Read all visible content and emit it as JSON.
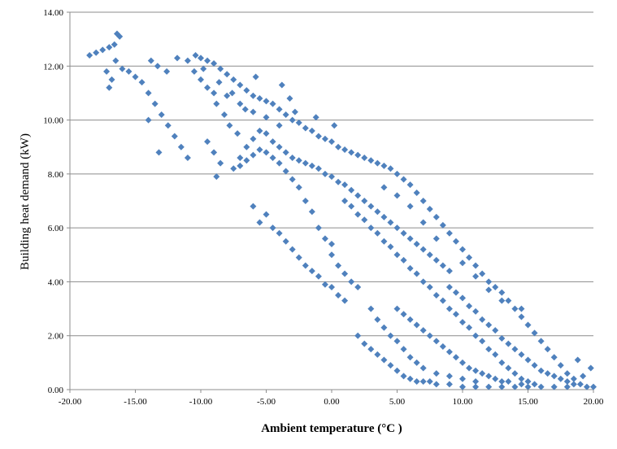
{
  "chart_data": {
    "type": "scatter",
    "title": "",
    "xlabel": "Ambient temperature (°C )",
    "ylabel": "Building heat demand (kW)",
    "xlim": [
      -20,
      20
    ],
    "ylim": [
      0,
      14
    ],
    "x_ticks": [
      -20,
      -15,
      -10,
      -5,
      0,
      5,
      10,
      15,
      20
    ],
    "y_ticks": [
      0,
      2,
      4,
      6,
      8,
      10,
      12,
      14
    ],
    "x_tick_labels": [
      "-20.00",
      "-15.00",
      "-10.00",
      "-5.00",
      "0.00",
      "5.00",
      "10.00",
      "15.00",
      "20.00"
    ],
    "y_tick_labels": [
      "0.00",
      "2.00",
      "4.00",
      "6.00",
      "8.00",
      "10.00",
      "12.00",
      "14.00"
    ],
    "grid": {
      "horizontal": true,
      "vertical": false
    },
    "legend": "none",
    "marker": "diamond",
    "marker_color": "#4F81BD",
    "series": [
      {
        "points": [
          [
            -18.5,
            12.4
          ],
          [
            -18.0,
            12.5
          ],
          [
            -17.5,
            12.6
          ],
          [
            -17.0,
            12.7
          ],
          [
            -16.6,
            12.8
          ],
          [
            -16.4,
            13.2
          ],
          [
            -16.2,
            13.1
          ],
          [
            -17.2,
            11.8
          ],
          [
            -17.0,
            11.2
          ],
          [
            -16.8,
            11.5
          ],
          [
            -16.5,
            12.2
          ],
          [
            -16.0,
            11.9
          ],
          [
            -15.5,
            11.8
          ],
          [
            -15.0,
            11.6
          ],
          [
            -14.5,
            11.4
          ],
          [
            -14.0,
            11.0
          ],
          [
            -13.5,
            10.6
          ],
          [
            -13.0,
            10.2
          ],
          [
            -12.5,
            9.8
          ],
          [
            -12.0,
            9.4
          ],
          [
            -11.5,
            9.0
          ],
          [
            -11.0,
            8.6
          ],
          [
            -13.2,
            8.8
          ],
          [
            -14.0,
            10.0
          ],
          [
            -13.8,
            12.2
          ],
          [
            -13.3,
            12.0
          ],
          [
            -12.6,
            11.8
          ],
          [
            -11.8,
            12.3
          ],
          [
            -11.0,
            12.2
          ],
          [
            -10.4,
            12.4
          ],
          [
            -10.0,
            12.3
          ],
          [
            -9.5,
            12.2
          ],
          [
            -9.0,
            12.1
          ],
          [
            -8.5,
            11.9
          ],
          [
            -8.0,
            11.7
          ],
          [
            -7.5,
            11.5
          ],
          [
            -7.0,
            11.3
          ],
          [
            -6.5,
            11.1
          ],
          [
            -6.0,
            10.9
          ],
          [
            -5.5,
            10.8
          ],
          [
            -5.0,
            10.7
          ],
          [
            -4.5,
            10.6
          ],
          [
            -4.0,
            10.4
          ],
          [
            -3.5,
            10.2
          ],
          [
            -10.5,
            11.8
          ],
          [
            -10.0,
            11.5
          ],
          [
            -9.5,
            11.2
          ],
          [
            -9.0,
            11.0
          ],
          [
            -8.8,
            10.6
          ],
          [
            -8.2,
            10.2
          ],
          [
            -7.8,
            9.8
          ],
          [
            -7.2,
            9.5
          ],
          [
            -9.5,
            9.2
          ],
          [
            -9.0,
            8.8
          ],
          [
            -8.5,
            8.4
          ],
          [
            -8.8,
            7.9
          ],
          [
            -7.5,
            8.2
          ],
          [
            -7.0,
            8.6
          ],
          [
            -6.5,
            9.0
          ],
          [
            -6.0,
            9.3
          ],
          [
            -5.5,
            9.6
          ],
          [
            -5.0,
            9.5
          ],
          [
            -4.5,
            9.2
          ],
          [
            -4.0,
            9.0
          ],
          [
            -3.5,
            8.8
          ],
          [
            -3.0,
            8.6
          ],
          [
            -2.5,
            8.5
          ],
          [
            -2.0,
            8.4
          ],
          [
            -1.5,
            8.3
          ],
          [
            -1.0,
            8.2
          ],
          [
            -0.5,
            8.0
          ],
          [
            0.0,
            7.9
          ],
          [
            0.5,
            7.7
          ],
          [
            1.0,
            7.6
          ],
          [
            1.5,
            7.4
          ],
          [
            2.0,
            7.2
          ],
          [
            2.5,
            7.0
          ],
          [
            3.0,
            6.8
          ],
          [
            3.5,
            6.6
          ],
          [
            4.0,
            6.4
          ],
          [
            4.5,
            6.2
          ],
          [
            5.0,
            6.0
          ],
          [
            5.5,
            5.8
          ],
          [
            6.0,
            5.6
          ],
          [
            6.5,
            5.4
          ],
          [
            7.0,
            5.2
          ],
          [
            7.5,
            5.0
          ],
          [
            8.0,
            4.8
          ],
          [
            8.5,
            4.6
          ],
          [
            9.0,
            4.4
          ],
          [
            -6.0,
            6.8
          ],
          [
            -5.5,
            6.2
          ],
          [
            -5.0,
            6.5
          ],
          [
            -4.5,
            6.0
          ],
          [
            -4.0,
            5.8
          ],
          [
            -3.5,
            5.5
          ],
          [
            -3.0,
            5.2
          ],
          [
            -2.5,
            4.9
          ],
          [
            -2.0,
            4.6
          ],
          [
            -1.5,
            4.4
          ],
          [
            -1.0,
            4.2
          ],
          [
            -0.5,
            3.9
          ],
          [
            0.0,
            3.8
          ],
          [
            0.5,
            3.5
          ],
          [
            1.0,
            3.3
          ],
          [
            -3.0,
            10.0
          ],
          [
            -2.5,
            9.9
          ],
          [
            -2.0,
            9.7
          ],
          [
            -1.5,
            9.6
          ],
          [
            -1.0,
            9.4
          ],
          [
            -0.5,
            9.3
          ],
          [
            0.0,
            9.2
          ],
          [
            0.5,
            9.0
          ],
          [
            1.0,
            8.9
          ],
          [
            1.5,
            8.8
          ],
          [
            2.0,
            8.7
          ],
          [
            2.5,
            8.6
          ],
          [
            3.0,
            8.5
          ],
          [
            3.5,
            8.4
          ],
          [
            4.0,
            8.3
          ],
          [
            4.5,
            8.2
          ],
          [
            5.0,
            8.0
          ],
          [
            5.5,
            7.8
          ],
          [
            6.0,
            7.6
          ],
          [
            6.5,
            7.3
          ],
          [
            7.0,
            7.0
          ],
          [
            7.5,
            6.7
          ],
          [
            8.0,
            6.4
          ],
          [
            8.5,
            6.1
          ],
          [
            9.0,
            5.8
          ],
          [
            9.5,
            5.5
          ],
          [
            10.0,
            5.2
          ],
          [
            10.5,
            4.9
          ],
          [
            11.0,
            4.6
          ],
          [
            11.5,
            4.3
          ],
          [
            12.0,
            4.0
          ],
          [
            12.5,
            3.8
          ],
          [
            13.0,
            3.6
          ],
          [
            13.5,
            3.3
          ],
          [
            14.0,
            3.0
          ],
          [
            14.5,
            2.7
          ],
          [
            15.0,
            2.4
          ],
          [
            15.5,
            2.1
          ],
          [
            16.0,
            1.8
          ],
          [
            16.5,
            1.5
          ],
          [
            17.0,
            1.2
          ],
          [
            17.5,
            0.9
          ],
          [
            18.0,
            0.6
          ],
          [
            18.5,
            0.4
          ],
          [
            19.0,
            0.2
          ],
          [
            19.5,
            0.1
          ],
          [
            20.0,
            0.1
          ],
          [
            19.8,
            0.8
          ],
          [
            19.2,
            0.5
          ],
          [
            18.8,
            1.1
          ],
          [
            1.0,
            7.0
          ],
          [
            1.5,
            6.8
          ],
          [
            2.0,
            6.5
          ],
          [
            2.5,
            6.3
          ],
          [
            3.0,
            6.0
          ],
          [
            3.5,
            5.8
          ],
          [
            4.0,
            5.5
          ],
          [
            4.5,
            5.3
          ],
          [
            5.0,
            5.0
          ],
          [
            5.5,
            4.8
          ],
          [
            6.0,
            4.5
          ],
          [
            6.5,
            4.3
          ],
          [
            7.0,
            4.0
          ],
          [
            7.5,
            3.8
          ],
          [
            8.0,
            3.5
          ],
          [
            8.5,
            3.3
          ],
          [
            9.0,
            3.0
          ],
          [
            9.5,
            2.8
          ],
          [
            10.0,
            2.5
          ],
          [
            10.5,
            2.3
          ],
          [
            11.0,
            2.0
          ],
          [
            11.5,
            1.8
          ],
          [
            12.0,
            1.5
          ],
          [
            12.5,
            1.3
          ],
          [
            13.0,
            1.0
          ],
          [
            13.5,
            0.8
          ],
          [
            14.0,
            0.6
          ],
          [
            14.5,
            0.4
          ],
          [
            15.0,
            0.3
          ],
          [
            15.5,
            0.2
          ],
          [
            2.0,
            2.0
          ],
          [
            2.5,
            1.7
          ],
          [
            3.0,
            1.5
          ],
          [
            3.5,
            1.3
          ],
          [
            4.0,
            1.1
          ],
          [
            4.5,
            0.9
          ],
          [
            5.0,
            0.7
          ],
          [
            5.5,
            0.5
          ],
          [
            6.0,
            0.4
          ],
          [
            6.5,
            0.3
          ],
          [
            7.0,
            0.3
          ],
          [
            7.5,
            0.3
          ],
          [
            8.0,
            0.2
          ],
          [
            9.0,
            0.2
          ],
          [
            10.0,
            0.1
          ],
          [
            11.0,
            0.1
          ],
          [
            12.0,
            0.1
          ],
          [
            13.0,
            0.1
          ],
          [
            14.0,
            0.1
          ],
          [
            16.0,
            0.1
          ],
          [
            17.0,
            0.1
          ],
          [
            18.0,
            0.1
          ],
          [
            3.0,
            3.0
          ],
          [
            3.5,
            2.6
          ],
          [
            4.0,
            2.3
          ],
          [
            4.5,
            2.0
          ],
          [
            5.0,
            1.8
          ],
          [
            5.5,
            1.5
          ],
          [
            6.0,
            1.2
          ],
          [
            6.5,
            1.0
          ],
          [
            7.0,
            0.8
          ],
          [
            8.0,
            0.6
          ],
          [
            9.0,
            0.5
          ],
          [
            10.0,
            0.4
          ],
          [
            11.0,
            0.3
          ],
          [
            0.0,
            5.0
          ],
          [
            0.5,
            4.6
          ],
          [
            1.0,
            4.3
          ],
          [
            1.5,
            4.0
          ],
          [
            2.0,
            3.8
          ],
          [
            -1.0,
            6.0
          ],
          [
            -0.5,
            5.6
          ],
          [
            0.0,
            5.4
          ],
          [
            -2.0,
            7.0
          ],
          [
            -1.5,
            6.6
          ],
          [
            -2.5,
            7.5
          ],
          [
            -3.0,
            7.8
          ],
          [
            -3.5,
            8.1
          ],
          [
            -4.0,
            8.4
          ],
          [
            -4.5,
            8.6
          ],
          [
            -5.0,
            8.8
          ],
          [
            -5.5,
            8.9
          ],
          [
            -6.0,
            8.7
          ],
          [
            -6.5,
            8.5
          ],
          [
            -7.0,
            8.3
          ],
          [
            5.0,
            3.0
          ],
          [
            5.5,
            2.8
          ],
          [
            6.0,
            2.6
          ],
          [
            6.5,
            2.4
          ],
          [
            7.0,
            2.2
          ],
          [
            7.5,
            2.0
          ],
          [
            8.0,
            1.8
          ],
          [
            8.5,
            1.6
          ],
          [
            9.0,
            1.4
          ],
          [
            9.5,
            1.2
          ],
          [
            10.0,
            1.0
          ],
          [
            10.5,
            0.8
          ],
          [
            11.0,
            0.7
          ],
          [
            11.5,
            0.6
          ],
          [
            12.0,
            0.5
          ],
          [
            12.5,
            0.4
          ],
          [
            13.0,
            0.3
          ],
          [
            13.5,
            0.3
          ],
          [
            14.5,
            0.2
          ],
          [
            15.0,
            0.1
          ],
          [
            9.0,
            3.8
          ],
          [
            9.5,
            3.6
          ],
          [
            10.0,
            3.4
          ],
          [
            10.5,
            3.1
          ],
          [
            11.0,
            2.9
          ],
          [
            11.5,
            2.6
          ],
          [
            12.0,
            2.4
          ],
          [
            12.5,
            2.2
          ],
          [
            13.0,
            1.9
          ],
          [
            13.5,
            1.7
          ],
          [
            14.0,
            1.5
          ],
          [
            14.5,
            1.3
          ],
          [
            15.0,
            1.1
          ],
          [
            15.5,
            0.9
          ],
          [
            16.0,
            0.7
          ],
          [
            16.5,
            0.6
          ],
          [
            17.0,
            0.5
          ],
          [
            17.5,
            0.4
          ],
          [
            18.0,
            0.3
          ],
          [
            18.5,
            0.2
          ],
          [
            14.5,
            3.0
          ],
          [
            13.0,
            3.3
          ],
          [
            12.0,
            3.7
          ],
          [
            11.0,
            4.2
          ],
          [
            10.0,
            4.7
          ],
          [
            4.0,
            7.5
          ],
          [
            5.0,
            7.2
          ],
          [
            6.0,
            6.8
          ],
          [
            7.0,
            6.2
          ],
          [
            8.0,
            5.6
          ],
          [
            -8.0,
            10.9
          ],
          [
            -7.0,
            10.6
          ],
          [
            -6.0,
            10.3
          ],
          [
            -5.0,
            10.1
          ],
          [
            -4.0,
            9.8
          ],
          [
            -9.8,
            11.9
          ],
          [
            -8.6,
            11.4
          ],
          [
            -7.6,
            11.0
          ],
          [
            -6.6,
            10.4
          ],
          [
            -5.8,
            11.6
          ],
          [
            -3.8,
            11.3
          ],
          [
            -3.2,
            10.8
          ],
          [
            -2.8,
            10.3
          ],
          [
            -1.2,
            10.1
          ],
          [
            0.2,
            9.8
          ]
        ]
      }
    ]
  }
}
